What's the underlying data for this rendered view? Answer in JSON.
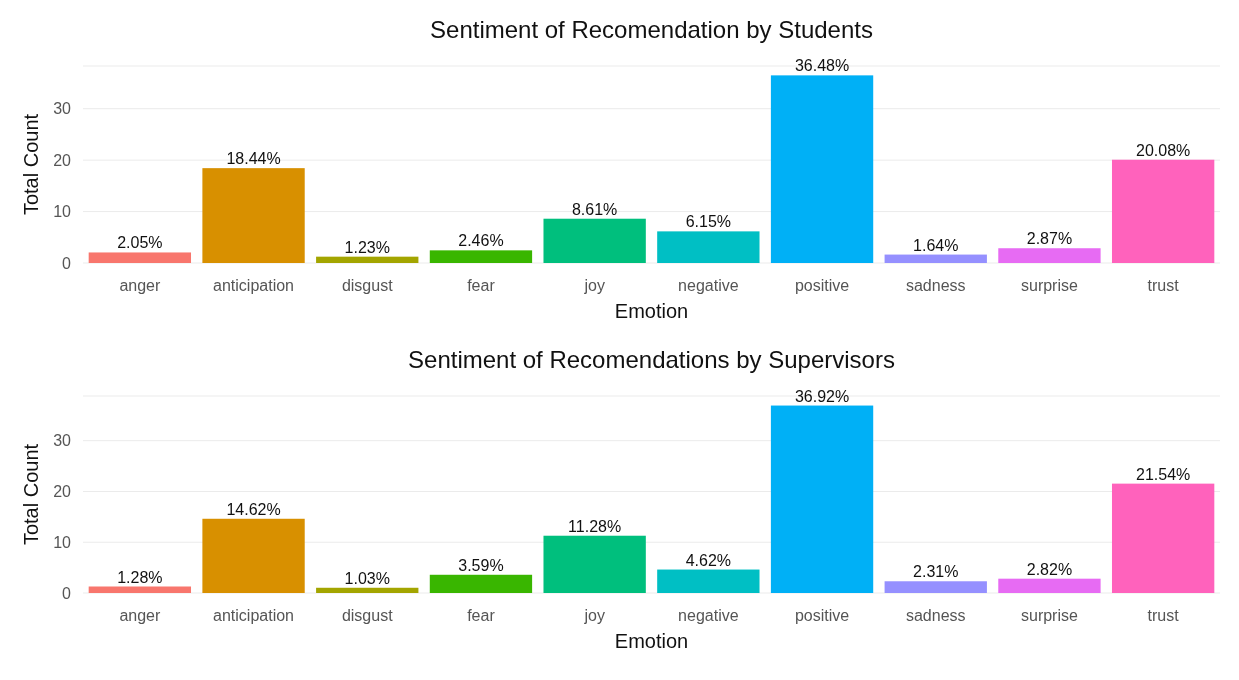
{
  "chart_data": [
    {
      "type": "bar",
      "title": "Sentiment of Recomendation by Students",
      "xlabel": "Emotion",
      "ylabel": "Total Count",
      "categories": [
        "anger",
        "anticipation",
        "disgust",
        "fear",
        "joy",
        "negative",
        "positive",
        "sadness",
        "surprise",
        "trust"
      ],
      "ylim": [
        0,
        38.3
      ],
      "values": [
        2.05,
        18.44,
        1.23,
        2.46,
        8.61,
        6.15,
        36.48,
        1.64,
        2.87,
        20.08
      ],
      "value_labels": [
        "2.05%",
        "18.44%",
        "1.23%",
        "2.46%",
        "8.61%",
        "6.15%",
        "36.48%",
        "1.64%",
        "2.87%",
        "20.08%"
      ],
      "colors": [
        "#f8766d",
        "#d89000",
        "#a3a500",
        "#39b600",
        "#00bf7d",
        "#00bfc4",
        "#00b0f6",
        "#9590ff",
        "#e76bf3",
        "#ff62bc"
      ],
      "yticks": [
        0,
        10,
        20,
        30
      ],
      "grid": "y"
    },
    {
      "type": "bar",
      "title": "Sentiment of Recomendations by Supervisors",
      "xlabel": "Emotion",
      "ylabel": "Total Count",
      "categories": [
        "anger",
        "anticipation",
        "disgust",
        "fear",
        "joy",
        "negative",
        "positive",
        "sadness",
        "surprise",
        "trust"
      ],
      "ylim": [
        0,
        38.8
      ],
      "values": [
        1.28,
        14.62,
        1.03,
        3.59,
        11.28,
        4.62,
        36.92,
        2.31,
        2.82,
        21.54
      ],
      "value_labels": [
        "1.28%",
        "14.62%",
        "1.03%",
        "3.59%",
        "11.28%",
        "4.62%",
        "36.92%",
        "2.31%",
        "2.82%",
        "21.54%"
      ],
      "colors": [
        "#f8766d",
        "#d89000",
        "#a3a500",
        "#39b600",
        "#00bf7d",
        "#00bfc4",
        "#00b0f6",
        "#9590ff",
        "#e76bf3",
        "#ff62bc"
      ],
      "yticks": [
        0,
        10,
        20,
        30
      ],
      "grid": "y"
    }
  ]
}
